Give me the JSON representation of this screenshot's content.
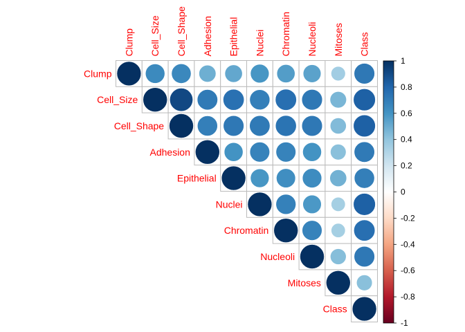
{
  "chart_data": {
    "type": "heatmap",
    "style": "correlation-circles-upper-triangle",
    "variables": [
      "Clump",
      "Cell_Size",
      "Cell_Shape",
      "Adhesion",
      "Epithelial",
      "Nuclei",
      "Chromatin",
      "Nucleoli",
      "Mitoses",
      "Class"
    ],
    "matrix": [
      [
        1.0,
        0.64,
        0.65,
        0.49,
        0.52,
        0.59,
        0.56,
        0.54,
        0.35,
        0.72
      ],
      [
        0.64,
        1.0,
        0.91,
        0.71,
        0.75,
        0.69,
        0.76,
        0.72,
        0.46,
        0.82
      ],
      [
        0.65,
        0.91,
        1.0,
        0.69,
        0.72,
        0.71,
        0.74,
        0.72,
        0.44,
        0.82
      ],
      [
        0.49,
        0.71,
        0.69,
        1.0,
        0.6,
        0.67,
        0.67,
        0.6,
        0.42,
        0.71
      ],
      [
        0.52,
        0.75,
        0.72,
        0.6,
        1.0,
        0.59,
        0.62,
        0.63,
        0.48,
        0.69
      ],
      [
        0.59,
        0.69,
        0.71,
        0.67,
        0.59,
        1.0,
        0.68,
        0.58,
        0.34,
        0.82
      ],
      [
        0.56,
        0.76,
        0.74,
        0.67,
        0.62,
        0.68,
        1.0,
        0.67,
        0.34,
        0.76
      ],
      [
        0.54,
        0.72,
        0.72,
        0.6,
        0.63,
        0.58,
        0.67,
        1.0,
        0.43,
        0.72
      ],
      [
        0.35,
        0.46,
        0.44,
        0.42,
        0.48,
        0.34,
        0.34,
        0.43,
        1.0,
        0.42
      ],
      [
        0.72,
        0.82,
        0.82,
        0.71,
        0.69,
        0.82,
        0.76,
        0.72,
        0.42,
        1.0
      ]
    ],
    "colorbar": {
      "min": -1,
      "max": 1,
      "ticks": [
        "1",
        "0.8",
        "0.6",
        "0.4",
        "0.2",
        "0",
        "-0.2",
        "-0.4",
        "-0.6",
        "-0.8",
        "-1"
      ]
    },
    "colors": {
      "label": "#ff0000",
      "grid": "#bbbbbb",
      "negative_end": "#67001f",
      "neutral": "#ffffff",
      "positive_end": "#053061"
    }
  }
}
